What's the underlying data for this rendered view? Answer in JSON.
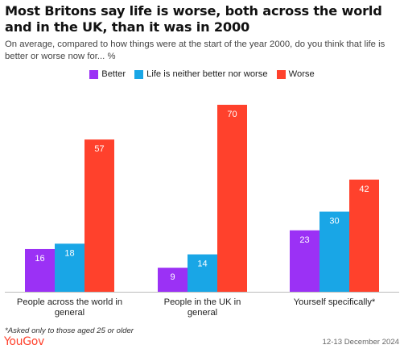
{
  "header": {
    "title": "Most Britons say life is worse, both across the world and in the UK, than it was in 2000",
    "subtitle": "On average, compared to how things were at the start of the year 2000, do you think that life is better or worse now for... %"
  },
  "colors": {
    "better": "#9B31F5",
    "neither": "#19A6E6",
    "worse": "#FF412C",
    "brand": "#FF412C"
  },
  "chart_data": {
    "type": "bar",
    "categories": [
      "People across the world in general",
      "People in the UK in general",
      "Yourself specifically*"
    ],
    "series": [
      {
        "name": "Better",
        "values": [
          16,
          9,
          23
        ]
      },
      {
        "name": "Life is neither better nor worse",
        "values": [
          18,
          14,
          30
        ]
      },
      {
        "name": "Worse",
        "values": [
          57,
          70,
          42
        ]
      }
    ],
    "ylim": [
      0,
      70
    ],
    "grid": false,
    "legend_position": "top-center",
    "data_labels": true
  },
  "footer": {
    "footnote": "*Asked only to those aged 25 or older",
    "brand": "YouGov",
    "date": "12-13 December 2024"
  }
}
